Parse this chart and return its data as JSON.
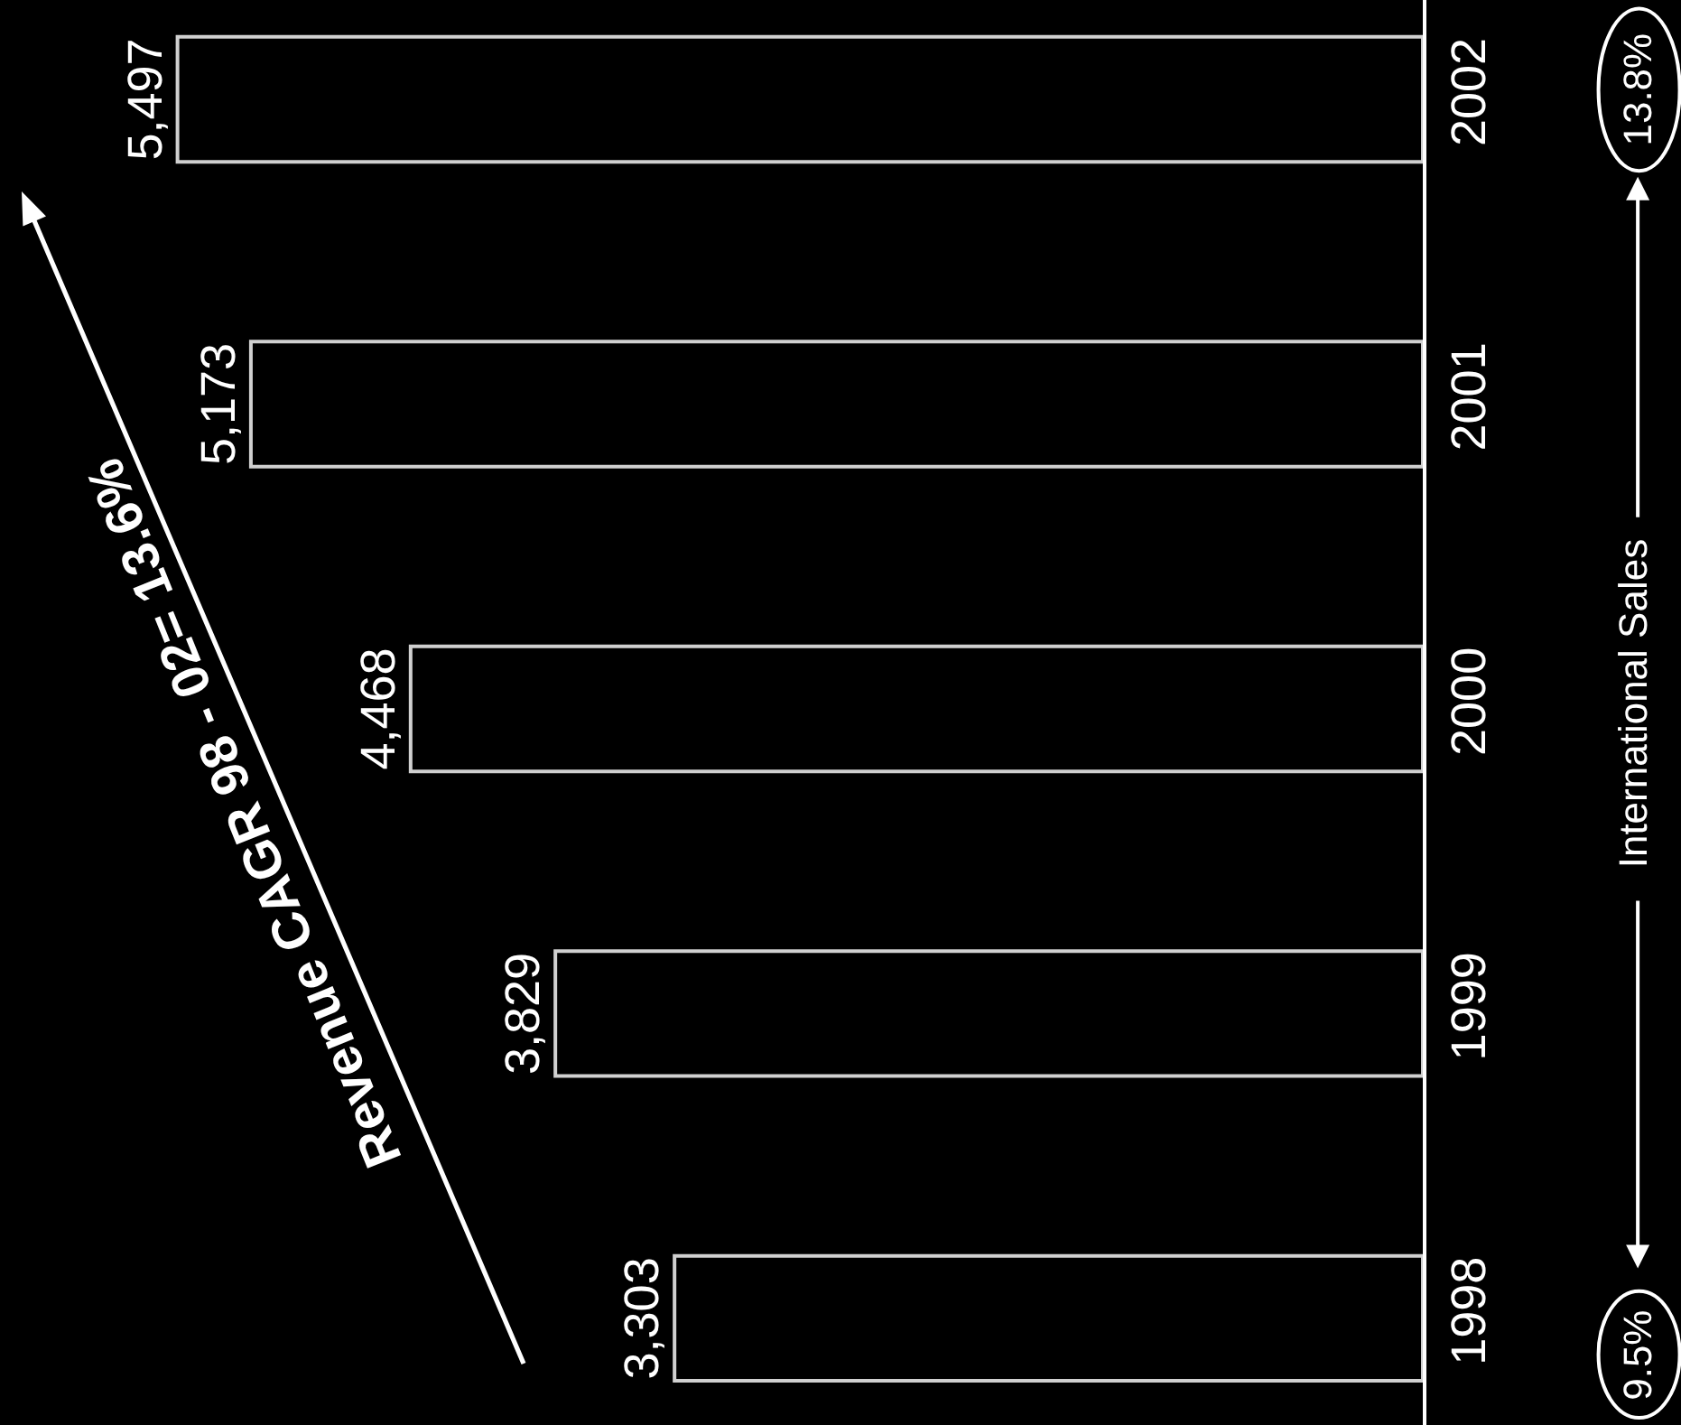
{
  "chart_data": {
    "type": "bar",
    "orientation": "horizontal",
    "categories": [
      "2002",
      "2001",
      "2000",
      "1999",
      "1998"
    ],
    "values": [
      5497,
      5173,
      4468,
      3829,
      3303
    ],
    "color": "#000000",
    "value_labels": [
      "5,497",
      "5,173",
      "4,468",
      "3,829",
      "3,303"
    ],
    "tick_labels": "y",
    "legend": false,
    "annotations": [
      "Revenue CAGR 98 - 02= 13.6%",
      "International Sales",
      "9.5%",
      "13.8%"
    ]
  }
}
